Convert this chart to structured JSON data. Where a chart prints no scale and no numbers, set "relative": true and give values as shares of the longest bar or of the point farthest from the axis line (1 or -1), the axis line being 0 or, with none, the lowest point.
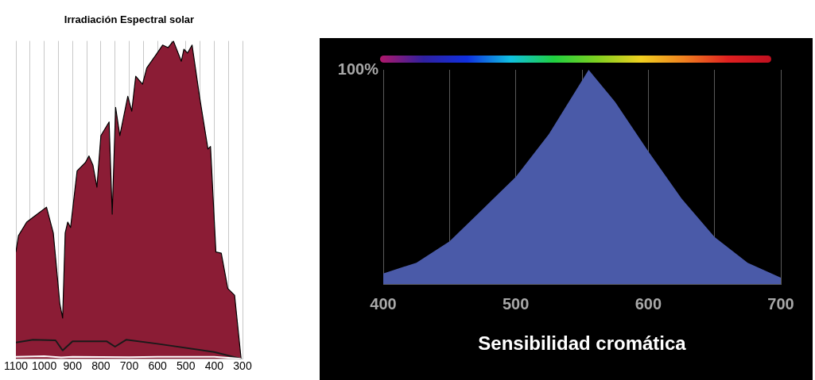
{
  "chart_data": [
    {
      "type": "area",
      "title": "Irradiación Espectral solar",
      "relative": true,
      "xlim": [
        1100,
        300
      ],
      "xticks": [
        1100,
        {
          "value": 1050,
          "label": null
        },
        1000,
        {
          "value": 950,
          "label": null
        },
        900,
        {
          "value": 850,
          "label": null
        },
        800,
        {
          "value": 750,
          "label": null
        },
        700,
        {
          "value": 650,
          "label": null
        },
        600,
        {
          "value": 550,
          "label": null
        },
        500,
        {
          "value": 450,
          "label": null
        },
        400,
        {
          "value": 350,
          "label": null
        },
        300
      ],
      "grid": "x",
      "series": [
        {
          "color": "#8b1c35",
          "x": [
            1100,
            1091,
            1062,
            1025,
            992,
            968,
            945,
            935,
            926,
            917,
            907,
            884,
            855,
            842,
            828,
            814,
            800,
            771,
            760,
            748,
            733,
            705,
            691,
            677,
            653,
            638,
            605,
            582,
            563,
            544,
            516,
            507,
            494,
            478,
            451,
            422,
            413,
            394,
            375,
            352,
            328,
            305
          ],
          "values": [
            0.336,
            0.387,
            0.43,
            0.455,
            0.477,
            0.396,
            0.174,
            0.128,
            0.396,
            0.43,
            0.413,
            0.591,
            0.617,
            0.638,
            0.609,
            0.54,
            0.702,
            0.745,
            0.455,
            0.791,
            0.702,
            0.826,
            0.779,
            0.889,
            0.864,
            0.915,
            0.957,
            0.987,
            0.979,
            1.0,
            0.936,
            0.974,
            0.962,
            0.987,
            0.821,
            0.66,
            0.668,
            0.336,
            0.332,
            0.221,
            0.2,
            0
          ]
        },
        {
          "type": "line",
          "color": "#1a1a1a",
          "x": [
            1100,
            1040,
            960,
            935,
            900,
            780,
            750,
            710,
            600,
            400,
            305
          ],
          "values": [
            0.051,
            0.06,
            0.058,
            0.026,
            0.055,
            0.055,
            0.038,
            0.06,
            0.047,
            0.021,
            0
          ]
        },
        {
          "type": "line",
          "color": "#ffffff",
          "x": [
            1100,
            1000,
            940,
            900,
            700,
            600,
            400,
            350,
            305
          ],
          "values": [
            0.006,
            0.008,
            0.004,
            0.006,
            0.005,
            0.006,
            0.006,
            0.003,
            0
          ]
        }
      ]
    },
    {
      "type": "area",
      "title": "Sensibilidad cromática",
      "annotations": [
        "100%"
      ],
      "relative": true,
      "xlim": [
        400,
        700
      ],
      "xticks": [
        400,
        {
          "value": 450,
          "label": null
        },
        500,
        {
          "value": 550,
          "label": null
        },
        600,
        {
          "value": 650,
          "label": null
        },
        700
      ],
      "grid": "x",
      "series": [
        {
          "color": "#4a5aa8",
          "x": [
            400,
            425,
            450,
            475,
            500,
            525,
            550,
            555,
            575,
            600,
            625,
            650,
            675,
            700
          ],
          "values": [
            0.05,
            0.1,
            0.2,
            0.35,
            0.5,
            0.7,
            0.95,
            1,
            0.85,
            0.62,
            0.4,
            0.22,
            0.1,
            0.03
          ]
        }
      ]
    }
  ]
}
